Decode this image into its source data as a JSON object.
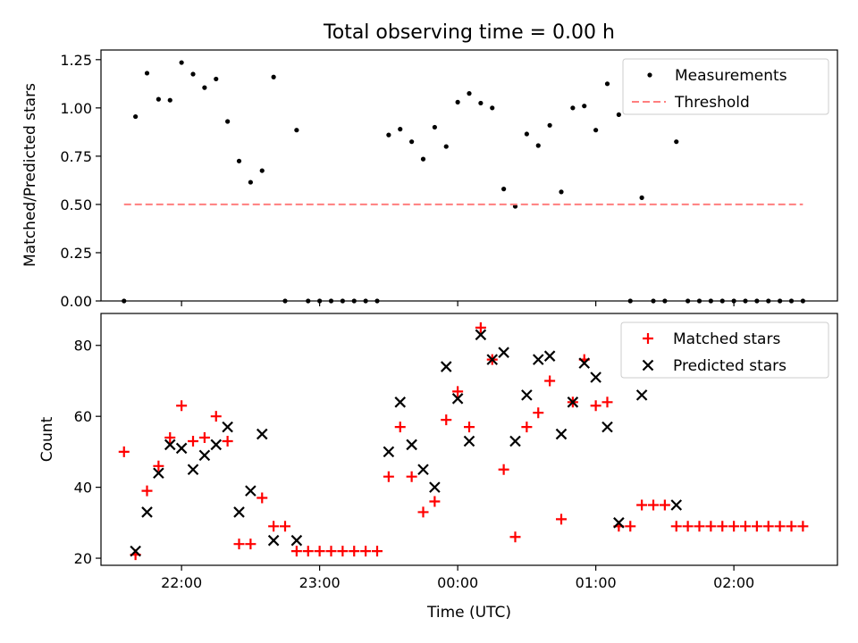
{
  "chart_data": [
    {
      "type": "scatter",
      "title": "Total observing time = 0.00 h",
      "ylabel": "Matched/Predicted stars",
      "xlim": [
        "21:25",
        "02:45"
      ],
      "ylim": [
        0,
        1.3
      ],
      "yticks": [
        "0.00",
        "0.25",
        "0.50",
        "0.75",
        "1.00",
        "1.25"
      ],
      "legend": {
        "position": "top-right"
      },
      "series": [
        {
          "name": "Measurements",
          "marker": "dot",
          "color": "#000000",
          "points": [
            [
              "21:35",
              0.0
            ],
            [
              "21:40",
              0.955
            ],
            [
              "21:45",
              1.18
            ],
            [
              "21:50",
              1.045
            ],
            [
              "21:55",
              1.04
            ],
            [
              "22:00",
              1.235
            ],
            [
              "22:05",
              1.175
            ],
            [
              "22:10",
              1.105
            ],
            [
              "22:15",
              1.15
            ],
            [
              "22:20",
              0.93
            ],
            [
              "22:25",
              0.725
            ],
            [
              "22:30",
              0.615
            ],
            [
              "22:35",
              0.675
            ],
            [
              "22:40",
              1.16
            ],
            [
              "22:45",
              0.0
            ],
            [
              "22:50",
              0.885
            ],
            [
              "22:55",
              0.0
            ],
            [
              "23:00",
              0.0
            ],
            [
              "23:05",
              0.0
            ],
            [
              "23:10",
              0.0
            ],
            [
              "23:15",
              0.0
            ],
            [
              "23:20",
              0.0
            ],
            [
              "23:25",
              0.0
            ],
            [
              "23:30",
              0.86
            ],
            [
              "23:35",
              0.89
            ],
            [
              "23:40",
              0.825
            ],
            [
              "23:45",
              0.735
            ],
            [
              "23:50",
              0.9
            ],
            [
              "23:55",
              0.8
            ],
            [
              "00:00",
              1.03
            ],
            [
              "00:05",
              1.075
            ],
            [
              "00:10",
              1.025
            ],
            [
              "00:15",
              1.0
            ],
            [
              "00:20",
              0.58
            ],
            [
              "00:25",
              0.49
            ],
            [
              "00:30",
              0.865
            ],
            [
              "00:35",
              0.805
            ],
            [
              "00:40",
              0.91
            ],
            [
              "00:45",
              0.565
            ],
            [
              "00:50",
              1.0
            ],
            [
              "00:55",
              1.01
            ],
            [
              "01:00",
              0.885
            ],
            [
              "01:05",
              1.125
            ],
            [
              "01:10",
              0.965
            ],
            [
              "01:15",
              0.0
            ],
            [
              "01:20",
              0.535
            ],
            [
              "01:25",
              0.0
            ],
            [
              "01:30",
              0.0
            ],
            [
              "01:35",
              0.825
            ],
            [
              "01:40",
              0.0
            ],
            [
              "01:45",
              0.0
            ],
            [
              "01:50",
              0.0
            ],
            [
              "01:55",
              0.0
            ],
            [
              "02:00",
              0.0
            ],
            [
              "02:05",
              0.0
            ],
            [
              "02:10",
              0.0
            ],
            [
              "02:15",
              0.0
            ],
            [
              "02:20",
              0.0
            ],
            [
              "02:25",
              0.0
            ],
            [
              "02:30",
              0.0
            ]
          ]
        },
        {
          "name": "Threshold",
          "type": "line",
          "style": "dashed",
          "color": "#ff7f7f",
          "points": [
            [
              "21:35",
              0.5
            ],
            [
              "02:30",
              0.5
            ]
          ]
        }
      ]
    },
    {
      "type": "scatter",
      "xlabel": "Time (UTC)",
      "ylabel": "Count",
      "xlim": [
        "21:25",
        "02:45"
      ],
      "ylim": [
        18,
        89
      ],
      "yticks": [
        "20",
        "40",
        "60",
        "80"
      ],
      "xticks": [
        "22:00",
        "23:00",
        "00:00",
        "01:00",
        "02:00"
      ],
      "legend": {
        "position": "top-right"
      },
      "series": [
        {
          "name": "Matched stars",
          "marker": "plus",
          "color": "#ff0000",
          "points": [
            [
              "21:35",
              50
            ],
            [
              "21:40",
              21
            ],
            [
              "21:45",
              39
            ],
            [
              "21:50",
              46
            ],
            [
              "21:55",
              54
            ],
            [
              "22:00",
              63
            ],
            [
              "22:05",
              53
            ],
            [
              "22:10",
              54
            ],
            [
              "22:15",
              60
            ],
            [
              "22:20",
              53
            ],
            [
              "22:25",
              24
            ],
            [
              "22:30",
              24
            ],
            [
              "22:35",
              37
            ],
            [
              "22:40",
              29
            ],
            [
              "22:45",
              29
            ],
            [
              "22:50",
              22
            ],
            [
              "22:55",
              22
            ],
            [
              "23:00",
              22
            ],
            [
              "23:05",
              22
            ],
            [
              "23:10",
              22
            ],
            [
              "23:15",
              22
            ],
            [
              "23:20",
              22
            ],
            [
              "23:25",
              22
            ],
            [
              "23:30",
              43
            ],
            [
              "23:35",
              57
            ],
            [
              "23:40",
              43
            ],
            [
              "23:45",
              33
            ],
            [
              "23:50",
              36
            ],
            [
              "23:55",
              59
            ],
            [
              "00:00",
              67
            ],
            [
              "00:05",
              57
            ],
            [
              "00:10",
              85
            ],
            [
              "00:15",
              76
            ],
            [
              "00:20",
              45
            ],
            [
              "00:25",
              26
            ],
            [
              "00:30",
              57
            ],
            [
              "00:35",
              61
            ],
            [
              "00:40",
              70
            ],
            [
              "00:45",
              31
            ],
            [
              "00:50",
              64
            ],
            [
              "00:55",
              76
            ],
            [
              "01:00",
              63
            ],
            [
              "01:05",
              64
            ],
            [
              "01:10",
              29
            ],
            [
              "01:15",
              29
            ],
            [
              "01:20",
              35
            ],
            [
              "01:25",
              35
            ],
            [
              "01:30",
              35
            ],
            [
              "01:35",
              29
            ],
            [
              "01:40",
              29
            ],
            [
              "01:45",
              29
            ],
            [
              "01:50",
              29
            ],
            [
              "01:55",
              29
            ],
            [
              "02:00",
              29
            ],
            [
              "02:05",
              29
            ],
            [
              "02:10",
              29
            ],
            [
              "02:15",
              29
            ],
            [
              "02:20",
              29
            ],
            [
              "02:25",
              29
            ],
            [
              "02:30",
              29
            ]
          ]
        },
        {
          "name": "Predicted stars",
          "marker": "x",
          "color": "#000000",
          "points": [
            [
              "21:40",
              22
            ],
            [
              "21:45",
              33
            ],
            [
              "21:50",
              44
            ],
            [
              "21:55",
              52
            ],
            [
              "22:00",
              51
            ],
            [
              "22:05",
              45
            ],
            [
              "22:10",
              49
            ],
            [
              "22:15",
              52
            ],
            [
              "22:20",
              57
            ],
            [
              "22:25",
              33
            ],
            [
              "22:30",
              39
            ],
            [
              "22:35",
              55
            ],
            [
              "22:40",
              25
            ],
            [
              "22:50",
              25
            ],
            [
              "23:30",
              50
            ],
            [
              "23:35",
              64
            ],
            [
              "23:40",
              52
            ],
            [
              "23:45",
              45
            ],
            [
              "23:50",
              40
            ],
            [
              "23:55",
              74
            ],
            [
              "00:00",
              65
            ],
            [
              "00:05",
              53
            ],
            [
              "00:10",
              83
            ],
            [
              "00:15",
              76
            ],
            [
              "00:20",
              78
            ],
            [
              "00:25",
              53
            ],
            [
              "00:30",
              66
            ],
            [
              "00:35",
              76
            ],
            [
              "00:40",
              77
            ],
            [
              "00:45",
              55
            ],
            [
              "00:50",
              64
            ],
            [
              "00:55",
              75
            ],
            [
              "01:00",
              71
            ],
            [
              "01:05",
              57
            ],
            [
              "01:10",
              30
            ],
            [
              "01:20",
              66
            ],
            [
              "01:35",
              35
            ]
          ]
        }
      ]
    }
  ]
}
